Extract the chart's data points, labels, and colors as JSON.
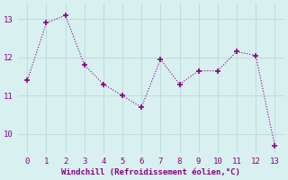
{
  "x": [
    0,
    1,
    2,
    3,
    4,
    5,
    6,
    7,
    8,
    9,
    10,
    11,
    12,
    13
  ],
  "y": [
    11.4,
    12.9,
    13.1,
    11.8,
    11.3,
    11.0,
    10.7,
    11.95,
    11.3,
    11.65,
    11.65,
    12.15,
    12.05,
    9.7
  ],
  "line_color": "#880088",
  "marker": "+",
  "marker_size": 5,
  "xlabel": "Windchill (Refroidissement éolien,°C)",
  "xlabel_color": "#880088",
  "xlim": [
    -0.5,
    13.5
  ],
  "ylim": [
    9.5,
    13.4
  ],
  "yticks": [
    10,
    11,
    12,
    13
  ],
  "xticks": [
    0,
    1,
    2,
    3,
    4,
    5,
    6,
    7,
    8,
    9,
    10,
    11,
    12,
    13
  ],
  "background_color": "#d8f0f0",
  "grid_color": "#c0dede",
  "tick_color": "#880088",
  "font_family": "monospace"
}
